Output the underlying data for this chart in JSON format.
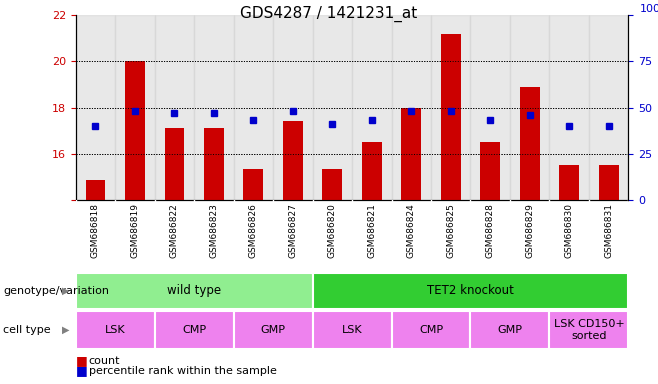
{
  "title": "GDS4287 / 1421231_at",
  "samples": [
    "GSM686818",
    "GSM686819",
    "GSM686822",
    "GSM686823",
    "GSM686826",
    "GSM686827",
    "GSM686820",
    "GSM686821",
    "GSM686824",
    "GSM686825",
    "GSM686828",
    "GSM686829",
    "GSM686830",
    "GSM686831"
  ],
  "counts": [
    14.85,
    20.0,
    17.1,
    17.1,
    15.35,
    17.4,
    15.35,
    16.5,
    18.0,
    21.2,
    16.5,
    18.9,
    15.5,
    15.5
  ],
  "percentile_ranks": [
    40,
    48,
    47,
    47,
    43,
    48,
    41,
    43,
    48,
    48,
    43,
    46,
    40,
    40
  ],
  "ylim_left": [
    14,
    22
  ],
  "ylim_right": [
    0,
    100
  ],
  "yticks_left": [
    14,
    16,
    18,
    20,
    22
  ],
  "yticks_right": [
    0,
    25,
    50,
    75,
    100
  ],
  "bar_color": "#cc0000",
  "dot_color": "#0000cc",
  "bar_width": 0.5,
  "genotype_groups": [
    {
      "label": "wild type",
      "start": 0,
      "end": 6,
      "color": "#90ee90"
    },
    {
      "label": "TET2 knockout",
      "start": 6,
      "end": 14,
      "color": "#32cd32"
    }
  ],
  "cell_type_groups": [
    {
      "label": "LSK",
      "start": 0,
      "end": 2
    },
    {
      "label": "CMP",
      "start": 2,
      "end": 4
    },
    {
      "label": "GMP",
      "start": 4,
      "end": 6
    },
    {
      "label": "LSK",
      "start": 6,
      "end": 8
    },
    {
      "label": "CMP",
      "start": 8,
      "end": 10
    },
    {
      "label": "GMP",
      "start": 10,
      "end": 12
    },
    {
      "label": "LSK CD150+\nsorted",
      "start": 12,
      "end": 14
    }
  ],
  "cell_type_color": "#ee82ee",
  "background_color": "#ffffff",
  "tick_label_color_left": "#cc0000",
  "tick_label_color_right": "#0000cc",
  "label_genotype": "genotype/variation",
  "label_celltype": "cell type",
  "xticklabel_bg": "#d3d3d3"
}
